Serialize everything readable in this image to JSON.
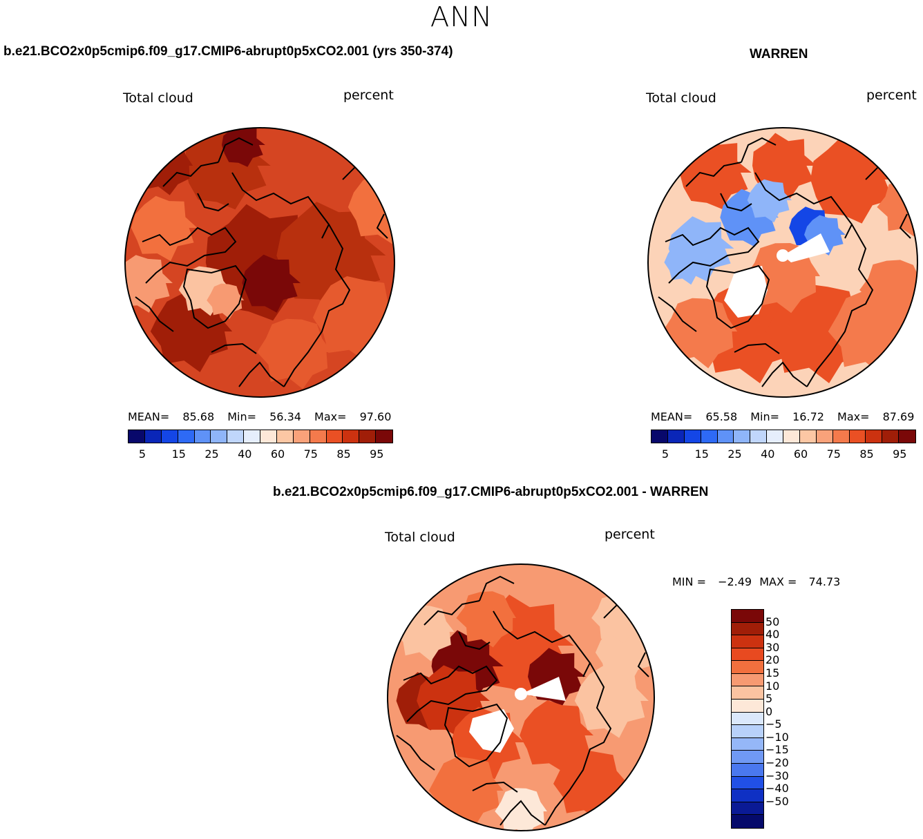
{
  "season": "ANN",
  "panel1": {
    "case": "b.e21.BCO2x0p5cmip6.f09_g17.CMIP6-abrupt0p5xCO2.001 (yrs 350-374)",
    "variable": "Total cloud",
    "units": "percent",
    "mean_label": "MEAN=",
    "mean": "85.68",
    "min_label": "Min=",
    "min": "56.34",
    "max_label": "Max=",
    "max": "97.60"
  },
  "panel2": {
    "case": "WARREN",
    "variable": "Total cloud",
    "units": "percent",
    "mean_label": "MEAN=",
    "mean": "65.58",
    "min_label": "Min=",
    "min": "16.72",
    "max_label": "Max=",
    "max": "87.69"
  },
  "panel3": {
    "case": "b.e21.BCO2x0p5cmip6.f09_g17.CMIP6-abrupt0p5xCO2.001 - WARREN",
    "variable": "Total cloud",
    "units": "percent",
    "minmax_label": "MIN =",
    "min": "−2.49",
    "max_label": "MAX =",
    "max": "74.73"
  },
  "colorbar_abs": {
    "colors": [
      "#08086b",
      "#0a26b8",
      "#1446e6",
      "#2e6af5",
      "#5f92f7",
      "#8fb5f9",
      "#c0d6fb",
      "#e6eefc",
      "#fde8d8",
      "#fcc7a4",
      "#f9a27a",
      "#f47a4c",
      "#ea5024",
      "#cc3210",
      "#a01e08",
      "#7a0808"
    ],
    "ticks": [
      "5",
      "15",
      "25",
      "40",
      "60",
      "75",
      "85",
      "95"
    ]
  },
  "colorbar_diff": {
    "colors": [
      "#7a0808",
      "#a01e08",
      "#cc3210",
      "#e84a20",
      "#f2703e",
      "#f79a72",
      "#fbc3a1",
      "#fde8d8",
      "#dbe8fb",
      "#b8d1fa",
      "#95b7f8",
      "#7099f4",
      "#4a78ef",
      "#2150e6",
      "#0f30c4",
      "#0a1a95",
      "#050a6b"
    ],
    "ticks": [
      "50",
      "40",
      "30",
      "20",
      "15",
      "10",
      "5",
      "0",
      "−5",
      "−10",
      "−15",
      "−20",
      "−30",
      "−40",
      "−50"
    ]
  },
  "maps": {
    "panel1": {
      "base_color": "#d54522",
      "patches": [
        "#b8300e",
        "#a01e08",
        "#7a0808",
        "#e65a2e",
        "#f2703e",
        "#f79a72",
        "#fbc3a1"
      ]
    },
    "panel2": {
      "base_color": "#fcd3b8",
      "patches": [
        "#f47a4c",
        "#ea5024",
        "#cc3210",
        "#c0d6fb",
        "#8fb5f9",
        "#5f92f7",
        "#1446e6"
      ]
    },
    "panel3": {
      "base_color": "#f79a72",
      "patches": [
        "#f2703e",
        "#ea5024",
        "#cc3210",
        "#a01e08",
        "#7a0808",
        "#fbc3a1",
        "#fde8d8"
      ]
    }
  }
}
